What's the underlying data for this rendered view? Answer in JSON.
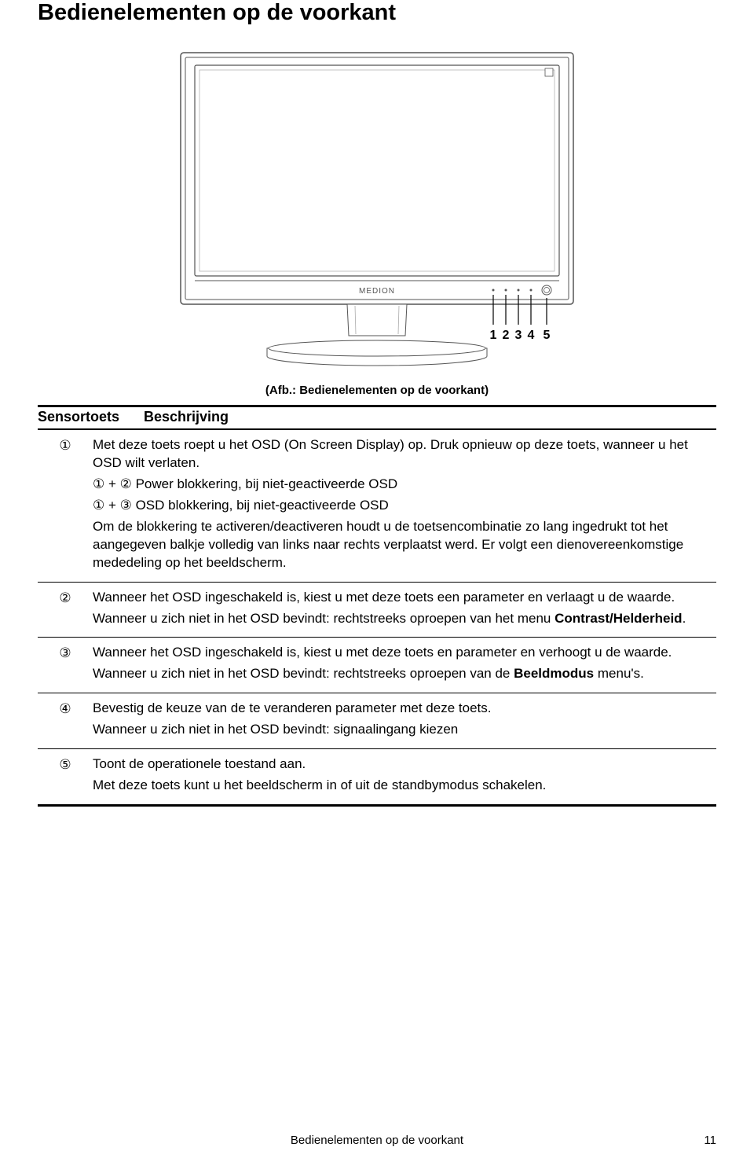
{
  "heading": "Bedienelementen op de voorkant",
  "diagram": {
    "brand": "MEDION",
    "button_numbers": [
      "1",
      "2",
      "3",
      "4",
      "5"
    ],
    "caption": "(Afb.: Bedienelementen op de voorkant)",
    "colors": {
      "stroke": "#555555",
      "fill": "#ffffff",
      "label_fill": "#000000"
    }
  },
  "table": {
    "header_col1": "Sensortoets",
    "header_col2": "Beschrijving",
    "rows": [
      {
        "key": "①",
        "paragraphs": [
          "Met deze toets roept u het OSD (On Screen Display) op. Druk opnieuw op deze toets, wanneer u het OSD wilt verlaten.",
          "① + ② Power blokkering, bij niet-geactiveerde OSD",
          "① + ③ OSD blokkering, bij niet-geactiveerde OSD",
          "Om de blokkering te activeren/deactiveren houdt u de toetsencombinatie zo lang ingedrukt tot het aangegeven balkje volledig van links naar rechts verplaatst werd. Er volgt een dienovereenkomstige mededeling op het beeldscherm."
        ]
      },
      {
        "key": "②",
        "paragraphs": [
          "Wanneer het OSD ingeschakeld is, kiest u met deze toets een parameter en verlaagt u de waarde.",
          "Wanneer u zich niet in het OSD bevindt: rechtstreeks oproepen van het menu <b>Contrast/Helderheid</b>."
        ]
      },
      {
        "key": "③",
        "paragraphs": [
          "Wanneer het OSD ingeschakeld is, kiest u met deze toets en parameter en verhoogt u de waarde.",
          "Wanneer u zich niet in het OSD bevindt: rechtstreeks oproepen van de <b>Beeldmodus</b> menu's."
        ]
      },
      {
        "key": "④",
        "paragraphs": [
          "Bevestig de keuze van de te veranderen parameter met deze toets.",
          "Wanneer u zich niet in het OSD bevindt: signaalingang kiezen"
        ]
      },
      {
        "key": "⑤",
        "paragraphs": [
          "Toont de operationele toestand aan.",
          "Met deze toets kunt u het beeldscherm in of uit de standbymodus schakelen."
        ]
      }
    ]
  },
  "footer": {
    "text": "Bedienelementen op de voorkant",
    "page_number": "11"
  }
}
